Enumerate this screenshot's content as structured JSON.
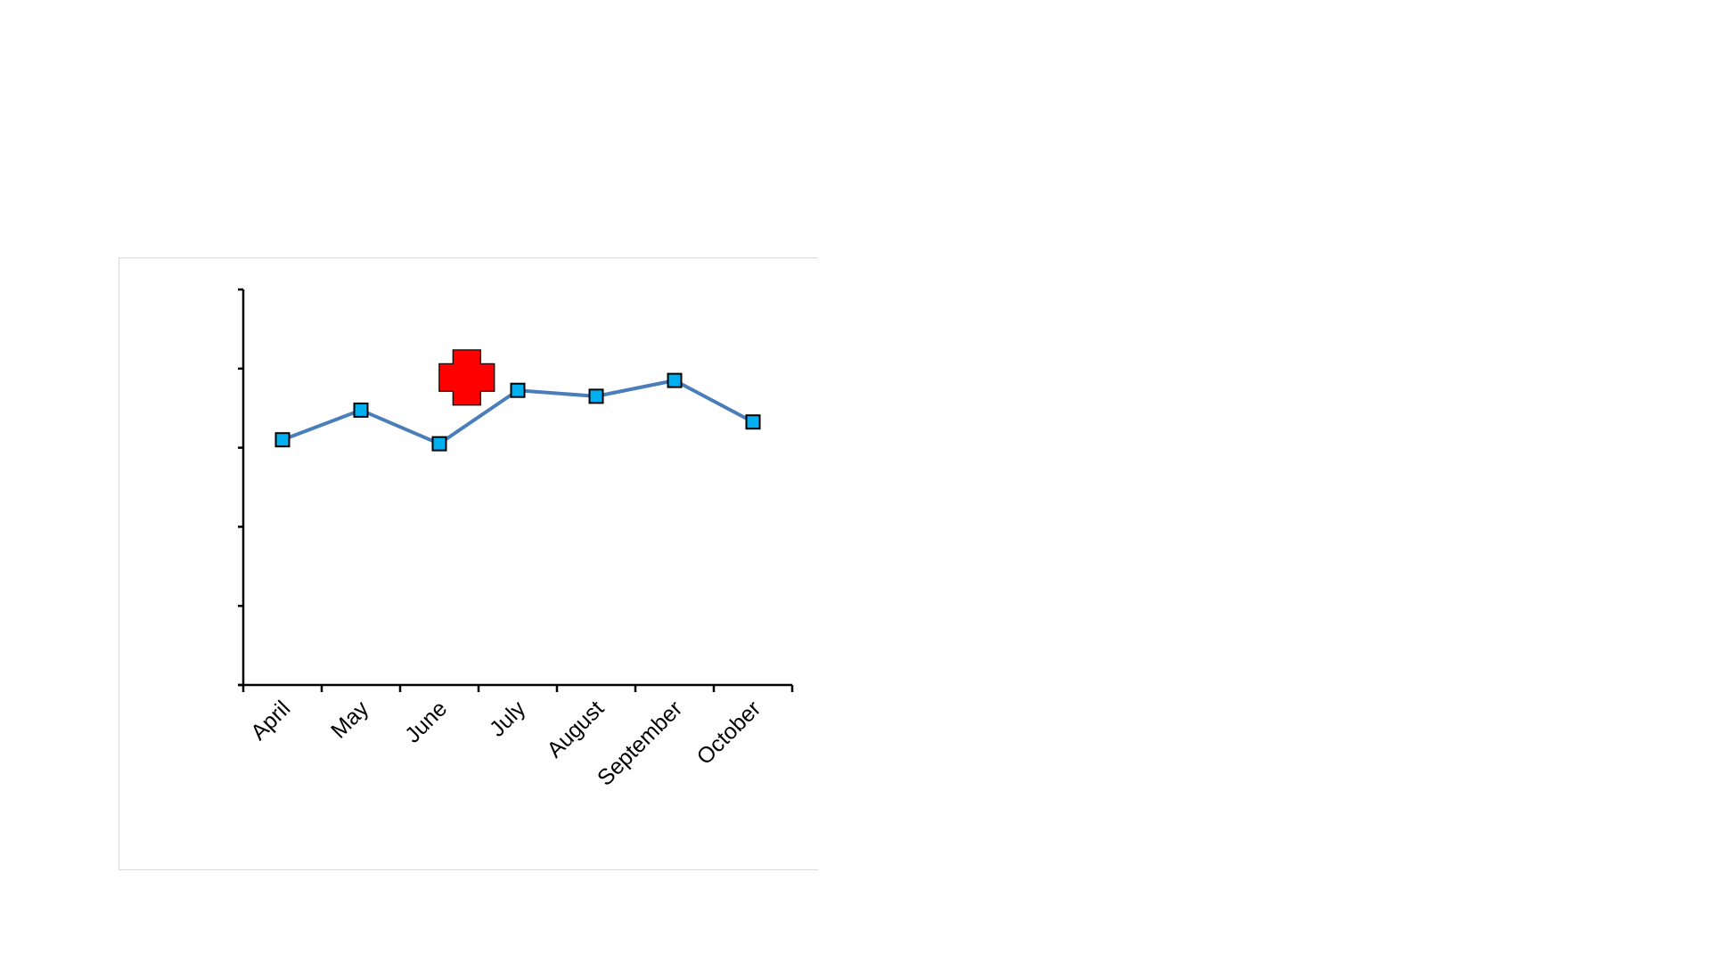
{
  "chart_data": {
    "type": "line",
    "title": "",
    "xlabel": "",
    "ylabel": "",
    "categories": [
      "April",
      "May",
      "June",
      "July",
      "August",
      "September",
      "October"
    ],
    "series": [
      {
        "values": [
          62,
          69.5,
          61,
          74.5,
          73,
          77,
          66.5
        ],
        "color": "#4a7ebb",
        "marker": "square",
        "marker_color": "#00b0f0"
      }
    ],
    "ylim": [
      0,
      100
    ],
    "y_tick_count": 6,
    "y_tick_labels_shown": false,
    "grid": false,
    "legend": "none",
    "annotation": {
      "shape": "plus",
      "color": "#ff0000",
      "position_category": "June",
      "y": 80
    }
  }
}
